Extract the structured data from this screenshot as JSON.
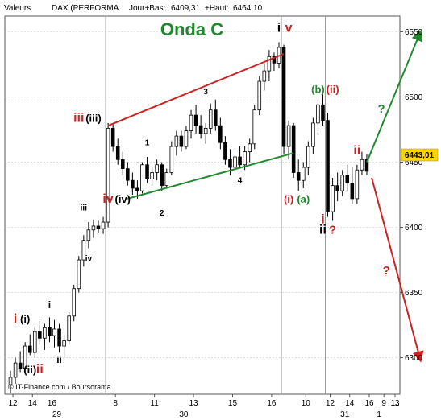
{
  "header": {
    "label": "Valeurs",
    "instrument": "DAX (PERFORMA",
    "day_low_label": "Jour+Bas:",
    "day_low": "6409,31",
    "day_high_label": "+Haut:",
    "day_high": "6464,10"
  },
  "footer": {
    "source": "© IT-Finance.com / Boursorama"
  },
  "chart_data": {
    "type": "candlestick",
    "title": "Onda C",
    "y_axis": {
      "ticks": [
        6300,
        6350,
        6400,
        6450,
        6500,
        6550
      ],
      "ylim": [
        6272,
        6562
      ]
    },
    "last_price": {
      "value": 6443.01,
      "label": "6443,01"
    },
    "x_axis": {
      "day_ticks": [
        "12",
        "14",
        "16",
        "8",
        "11",
        "13",
        "15",
        "16",
        "10",
        "12",
        "14",
        "16",
        "9",
        "11",
        "13"
      ],
      "date_labels": [
        "29",
        "30",
        "31",
        "1"
      ]
    },
    "ohlc": [
      [
        6279,
        6290,
        6273,
        6285
      ],
      [
        6285,
        6300,
        6280,
        6296
      ],
      [
        6296,
        6305,
        6289,
        6292
      ],
      [
        6292,
        6312,
        6288,
        6309
      ],
      [
        6309,
        6318,
        6302,
        6304
      ],
      [
        6304,
        6324,
        6300,
        6320
      ],
      [
        6320,
        6328,
        6310,
        6315
      ],
      [
        6315,
        6326,
        6306,
        6323
      ],
      [
        6323,
        6331,
        6312,
        6317
      ],
      [
        6317,
        6329,
        6308,
        6322
      ],
      [
        6322,
        6326,
        6304,
        6309
      ],
      [
        6309,
        6318,
        6300,
        6313
      ],
      [
        6313,
        6335,
        6310,
        6332
      ],
      [
        6332,
        6356,
        6328,
        6353
      ],
      [
        6353,
        6378,
        6350,
        6375
      ],
      [
        6375,
        6394,
        6370,
        6390
      ],
      [
        6390,
        6404,
        6384,
        6398
      ],
      [
        6398,
        6406,
        6392,
        6401
      ],
      [
        6401,
        6405,
        6396,
        6399
      ],
      [
        6399,
        6408,
        6395,
        6404
      ],
      [
        6404,
        6480,
        6400,
        6476
      ],
      [
        6476,
        6479,
        6458,
        6462
      ],
      [
        6462,
        6468,
        6448,
        6452
      ],
      [
        6452,
        6458,
        6440,
        6445
      ],
      [
        6445,
        6450,
        6432,
        6436
      ],
      [
        6436,
        6442,
        6425,
        6430
      ],
      [
        6430,
        6436,
        6422,
        6428
      ],
      [
        6428,
        6450,
        6426,
        6448
      ],
      [
        6448,
        6454,
        6434,
        6437
      ],
      [
        6437,
        6446,
        6432,
        6442
      ],
      [
        6442,
        6452,
        6436,
        6448
      ],
      [
        6448,
        6450,
        6428,
        6432
      ],
      [
        6432,
        6445,
        6430,
        6442
      ],
      [
        6442,
        6466,
        6440,
        6462
      ],
      [
        6462,
        6474,
        6455,
        6470
      ],
      [
        6470,
        6474,
        6458,
        6462
      ],
      [
        6462,
        6478,
        6460,
        6474
      ],
      [
        6474,
        6490,
        6468,
        6486
      ],
      [
        6486,
        6494,
        6472,
        6478
      ],
      [
        6478,
        6486,
        6468,
        6472
      ],
      [
        6472,
        6480,
        6464,
        6476
      ],
      [
        6476,
        6495,
        6472,
        6490
      ],
      [
        6490,
        6498,
        6474,
        6478
      ],
      [
        6478,
        6484,
        6460,
        6465
      ],
      [
        6465,
        6470,
        6448,
        6452
      ],
      [
        6452,
        6460,
        6440,
        6446
      ],
      [
        6446,
        6458,
        6442,
        6454
      ],
      [
        6454,
        6462,
        6445,
        6448
      ],
      [
        6448,
        6462,
        6444,
        6458
      ],
      [
        6458,
        6468,
        6450,
        6464
      ],
      [
        6464,
        6494,
        6460,
        6490
      ],
      [
        6490,
        6516,
        6486,
        6512
      ],
      [
        6512,
        6526,
        6505,
        6520
      ],
      [
        6520,
        6536,
        6512,
        6531
      ],
      [
        6531,
        6534,
        6520,
        6526
      ],
      [
        6526,
        6542,
        6522,
        6538
      ],
      [
        6538,
        6540,
        6456,
        6462
      ],
      [
        6462,
        6482,
        6452,
        6478
      ],
      [
        6478,
        6480,
        6438,
        6442
      ],
      [
        6442,
        6452,
        6428,
        6436
      ],
      [
        6436,
        6450,
        6430,
        6446
      ],
      [
        6446,
        6466,
        6440,
        6462
      ],
      [
        6462,
        6484,
        6456,
        6480
      ],
      [
        6480,
        6498,
        6472,
        6494
      ],
      [
        6494,
        6502,
        6478,
        6482
      ],
      [
        6482,
        6488,
        6408,
        6412
      ],
      [
        6412,
        6438,
        6405,
        6432
      ],
      [
        6432,
        6442,
        6420,
        6428
      ],
      [
        6428,
        6444,
        6424,
        6440
      ],
      [
        6440,
        6448,
        6428,
        6434
      ],
      [
        6434,
        6446,
        6418,
        6422
      ],
      [
        6422,
        6448,
        6418,
        6444
      ],
      [
        6444,
        6458,
        6440,
        6452
      ],
      [
        6452,
        6456,
        6440,
        6443
      ]
    ],
    "lines": [
      {
        "name": "upper-channel",
        "color": "#cc2222",
        "from": [
          20,
          6478
        ],
        "to": [
          56,
          6533
        ]
      },
      {
        "name": "lower-channel",
        "color": "#22882e",
        "from": [
          24,
          6422
        ],
        "to": [
          58,
          6457
        ]
      },
      {
        "name": "bull-projection",
        "color": "#22882e",
        "from": [
          73,
          6450
        ],
        "to": [
          84,
          6550
        ]
      },
      {
        "name": "bear-projection",
        "color": "#cc2222",
        "from": [
          74,
          6438
        ],
        "to": [
          84,
          6298
        ]
      }
    ],
    "annotations": [
      {
        "text": "i",
        "color": "#cc2222",
        "i": 1,
        "v": 6327
      },
      {
        "text": "(i)",
        "color": "#000000",
        "i": 3,
        "v": 6327
      },
      {
        "text": "(ii)",
        "color": "#000000",
        "i": 4,
        "v": 6288
      },
      {
        "text": "ii",
        "color": "#cc2222",
        "i": 6,
        "v": 6288
      },
      {
        "text": "i",
        "color": "#000000",
        "i": 8,
        "v": 6338
      },
      {
        "text": "ii",
        "color": "#000000",
        "i": 10,
        "v": 6296
      },
      {
        "text": "iii",
        "color": "#000000",
        "i": 15,
        "v": 6413
      },
      {
        "text": "iv",
        "color": "#000000",
        "i": 16,
        "v": 6374
      },
      {
        "text": "iii",
        "color": "#cc2222",
        "i": 14,
        "v": 6481
      },
      {
        "text": "(iii)",
        "color": "#000000",
        "i": 17,
        "v": 6481
      },
      {
        "text": "iv",
        "color": "#cc2222",
        "i": 20,
        "v": 6419
      },
      {
        "text": "(iv)",
        "color": "#000000",
        "i": 23,
        "v": 6419
      },
      {
        "text": "1",
        "color": "#000000",
        "i": 28,
        "v": 6463
      },
      {
        "text": "2",
        "color": "#000000",
        "i": 31,
        "v": 6409
      },
      {
        "text": "3",
        "color": "#000000",
        "i": 40,
        "v": 6502
      },
      {
        "text": "4",
        "color": "#000000",
        "i": 47,
        "v": 6434
      },
      {
        "text": "i",
        "color": "#000000",
        "i": 55,
        "v": 6550
      },
      {
        "text": "v",
        "color": "#cc2222",
        "i": 57,
        "v": 6550
      },
      {
        "text": "(i)",
        "color": "#cc2222",
        "i": 57,
        "v": 6419
      },
      {
        "text": "(a)",
        "color": "#22882e",
        "i": 60,
        "v": 6419
      },
      {
        "text": "(b)",
        "color": "#22882e",
        "i": 63,
        "v": 6503
      },
      {
        "text": "(ii)",
        "color": "#cc2222",
        "i": 66,
        "v": 6503
      },
      {
        "text": "i",
        "color": "#cc2222",
        "i": 64,
        "v": 6403
      },
      {
        "text": "ii",
        "color": "#000000",
        "i": 64,
        "v": 6395
      },
      {
        "text": "?",
        "color": "#cc2222",
        "i": 66,
        "v": 6395
      },
      {
        "text": "ii",
        "color": "#cc2222",
        "i": 71,
        "v": 6456
      },
      {
        "text": "?",
        "color": "#22882e",
        "i": 76,
        "v": 6488
      },
      {
        "text": "?",
        "color": "#cc2222",
        "i": 77,
        "v": 6364
      }
    ]
  }
}
